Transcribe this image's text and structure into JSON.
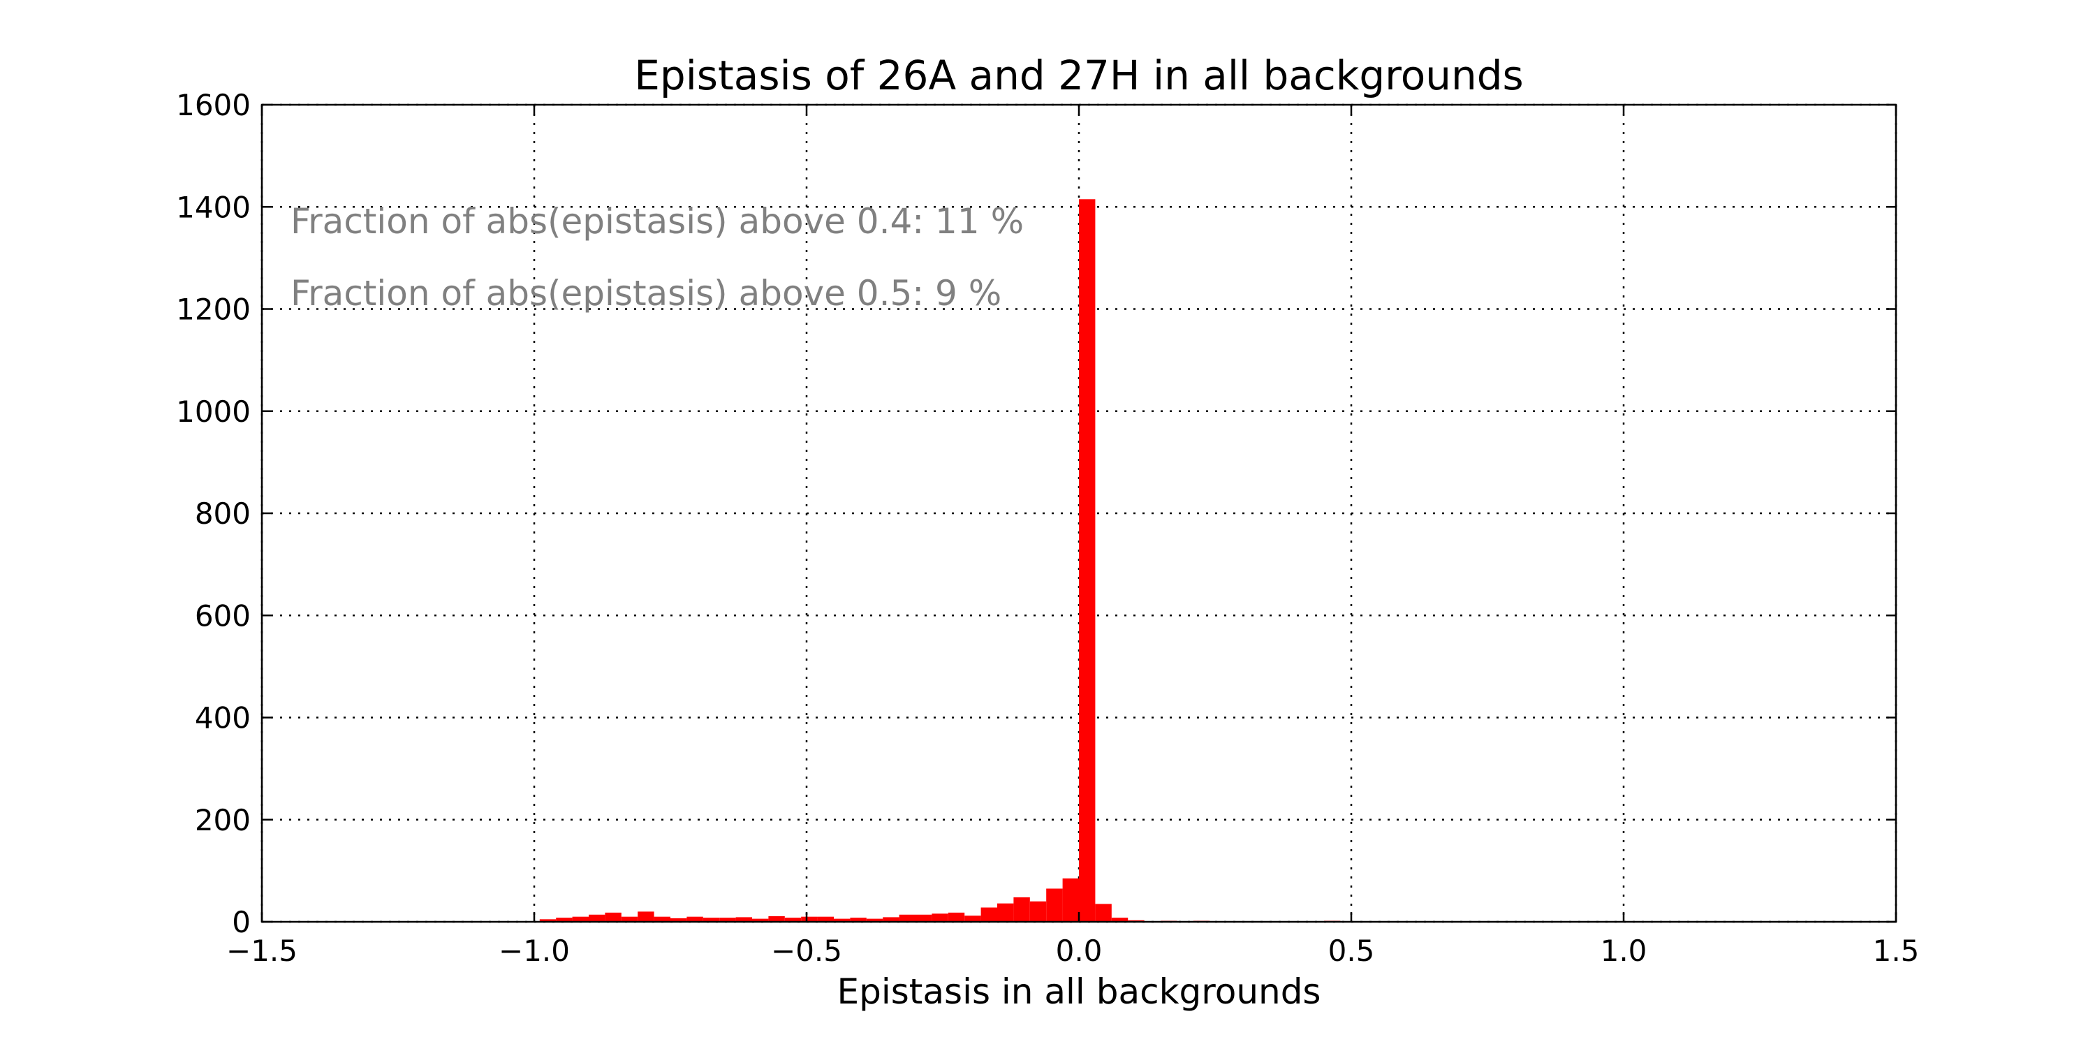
{
  "chart_data": {
    "type": "bar",
    "title": "Epistasis of 26A and 27H in all backgrounds",
    "xlabel": "Epistasis in all backgrounds",
    "ylabel": "",
    "xlim": [
      -1.5,
      1.5
    ],
    "ylim": [
      0,
      1600
    ],
    "grid": true,
    "bar_color": "#ff0000",
    "bin_width": 0.03,
    "x_ticks": [
      -1.5,
      -1.0,
      -0.5,
      0.0,
      0.5,
      1.0,
      1.5
    ],
    "x_tick_labels": [
      "−1.5",
      "−1.0",
      "−0.5",
      "0.0",
      "0.5",
      "1.0",
      "1.5"
    ],
    "y_ticks": [
      0,
      200,
      400,
      600,
      800,
      1000,
      1200,
      1400,
      1600
    ],
    "y_tick_labels": [
      "0",
      "200",
      "400",
      "600",
      "800",
      "1000",
      "1200",
      "1400",
      "1600"
    ],
    "annotations": [
      "Fraction of abs(epistasis) above 0.4: 11 %",
      "Fraction of abs(epistasis) above 0.5: 9 %"
    ],
    "x": [
      -0.99,
      -0.96,
      -0.93,
      -0.9,
      -0.87,
      -0.84,
      -0.81,
      -0.78,
      -0.75,
      -0.72,
      -0.69,
      -0.66,
      -0.63,
      -0.6,
      -0.57,
      -0.54,
      -0.51,
      -0.48,
      -0.45,
      -0.42,
      -0.39,
      -0.36,
      -0.33,
      -0.3,
      -0.27,
      -0.24,
      -0.21,
      -0.18,
      -0.15,
      -0.12,
      -0.09,
      -0.06,
      -0.03,
      0.0,
      0.03,
      0.06,
      0.09,
      0.12,
      0.15,
      0.18,
      0.21,
      0.24,
      0.45
    ],
    "values": [
      5,
      8,
      10,
      14,
      18,
      10,
      20,
      10,
      7,
      10,
      8,
      8,
      9,
      6,
      11,
      8,
      10,
      10,
      6,
      8,
      6,
      9,
      14,
      14,
      16,
      18,
      12,
      28,
      36,
      48,
      40,
      65,
      85,
      1415,
      35,
      8,
      3,
      1,
      2,
      1,
      2,
      1,
      2
    ]
  }
}
